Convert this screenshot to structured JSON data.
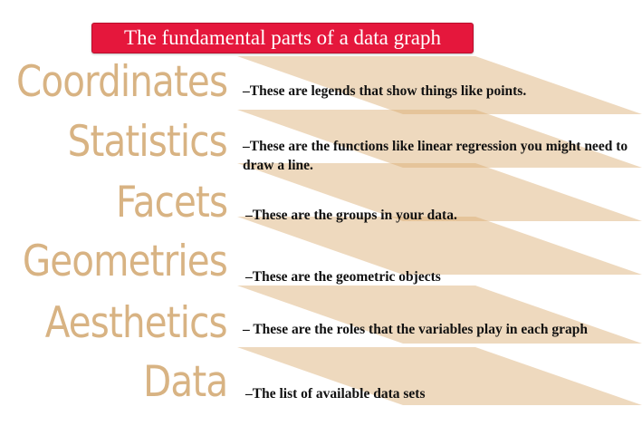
{
  "title": "The fundamental parts of a data graph",
  "colors": {
    "title_background": "#e5173c",
    "title_text": "#ffffff",
    "term_text": "#d8b383",
    "layer_fill": "#d9ab6e",
    "description_text": "#111111"
  },
  "layers": [
    {
      "term": "Coordinates",
      "description": "–These are legends that show things like points."
    },
    {
      "term": "Statistics",
      "description": "–These are the functions like linear regression you might need to draw a line."
    },
    {
      "term": "Facets",
      "description": "–These are the groups in your data."
    },
    {
      "term": "Geometries",
      "description": "–These are the geometric objects"
    },
    {
      "term": "Aesthetics",
      "description": "– These are the roles that the variables play in each graph"
    },
    {
      "term": "Data",
      "description": "–The list of available data sets"
    }
  ]
}
